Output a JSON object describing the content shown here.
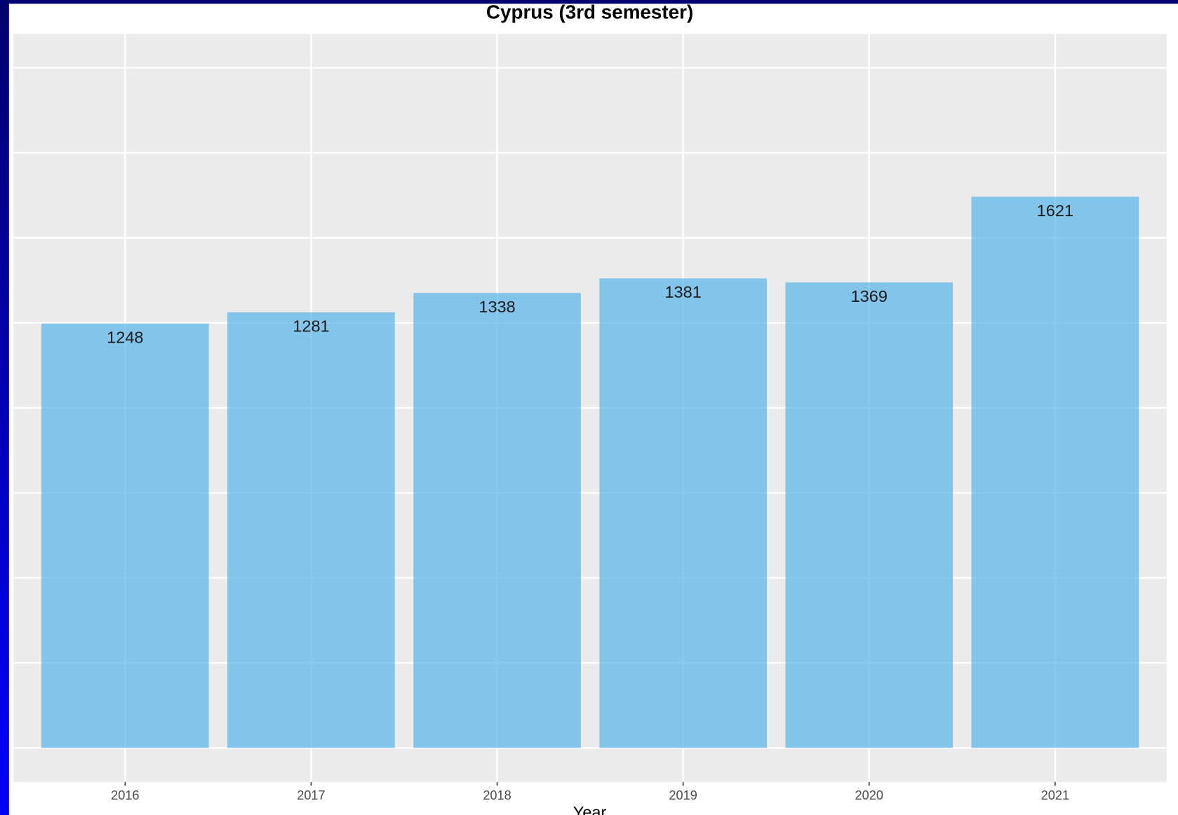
{
  "chart_data": {
    "type": "bar",
    "title": "Cyprus (3rd semester)",
    "x_label": "Year",
    "categories": [
      "2016",
      "2017",
      "2018",
      "2019",
      "2020",
      "2021"
    ],
    "values": [
      1248,
      1281,
      1338,
      1381,
      1369,
      1621
    ],
    "color": "#56B4E9",
    "ylim": [
      -100,
      2100
    ],
    "yticks": [
      0,
      250,
      500,
      750,
      1000,
      1250,
      1500,
      1750,
      2000
    ],
    "grid": true
  }
}
